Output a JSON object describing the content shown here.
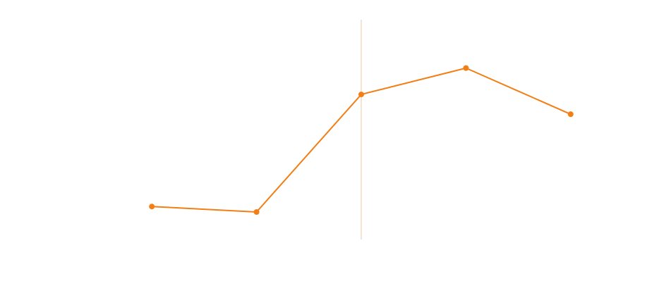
{
  "chart_data": {
    "type": "line",
    "categories": [
      null,
      null,
      null,
      null,
      null
    ],
    "series": [
      {
        "color": "#f27e14",
        "values": [
          15,
          12.5,
          66,
          78,
          57
        ]
      }
    ],
    "ylim": [
      0,
      100
    ],
    "highlight_index": 2,
    "highlight_color": "#f3c79c"
  }
}
